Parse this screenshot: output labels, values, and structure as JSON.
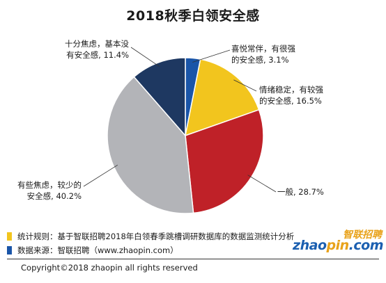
{
  "chart_data": {
    "type": "pie",
    "title": "2018秋季白领安全感",
    "slices": [
      {
        "label": "喜悦常伴，有很强的安全感，3.1%",
        "lines": [
          "喜悦常伴，有很强",
          "的安全感, 3.1%"
        ],
        "value": 3.1,
        "color": "#1a55a8"
      },
      {
        "label": "情绪稳定，有较强的安全感，16.5%",
        "lines": [
          "情绪稳定，有较强",
          "的安全感, 16.5%"
        ],
        "value": 16.5,
        "color": "#f2c51e"
      },
      {
        "label": "一般，28.7%",
        "lines": [
          "一般, 28.7%"
        ],
        "value": 28.7,
        "color": "#bf2128"
      },
      {
        "label": "有些焦虑，较少的安全感，40.2%",
        "lines": [
          "有些焦虑，较少的",
          "安全感, 40.2%"
        ],
        "value": 40.2,
        "color": "#b3b4b8"
      },
      {
        "label": "十分焦虑，基本没有安全感，11.4%",
        "lines": [
          "十分焦虑，基本没",
          "有安全感, 11.4%"
        ],
        "value": 11.4,
        "color": "#1e3861"
      }
    ],
    "start_angle_deg": 0,
    "direction": "clockwise"
  },
  "notes": [
    {
      "text": "统计规则：基于智联招聘2018年白领春季跳槽调研数据库的数据监测统计分析",
      "color": "#f2c51e"
    },
    {
      "text": "数据来源：智联招聘（www.zhaopin.com）",
      "color": "#1a55a8"
    }
  ],
  "logo": {
    "cn": "智联招聘",
    "en_left": "zhao",
    "en_mid": "pin",
    "en_right": ".com"
  },
  "footer": {
    "copyright": "Copyright©2018 zhaopin all rights reserved"
  }
}
